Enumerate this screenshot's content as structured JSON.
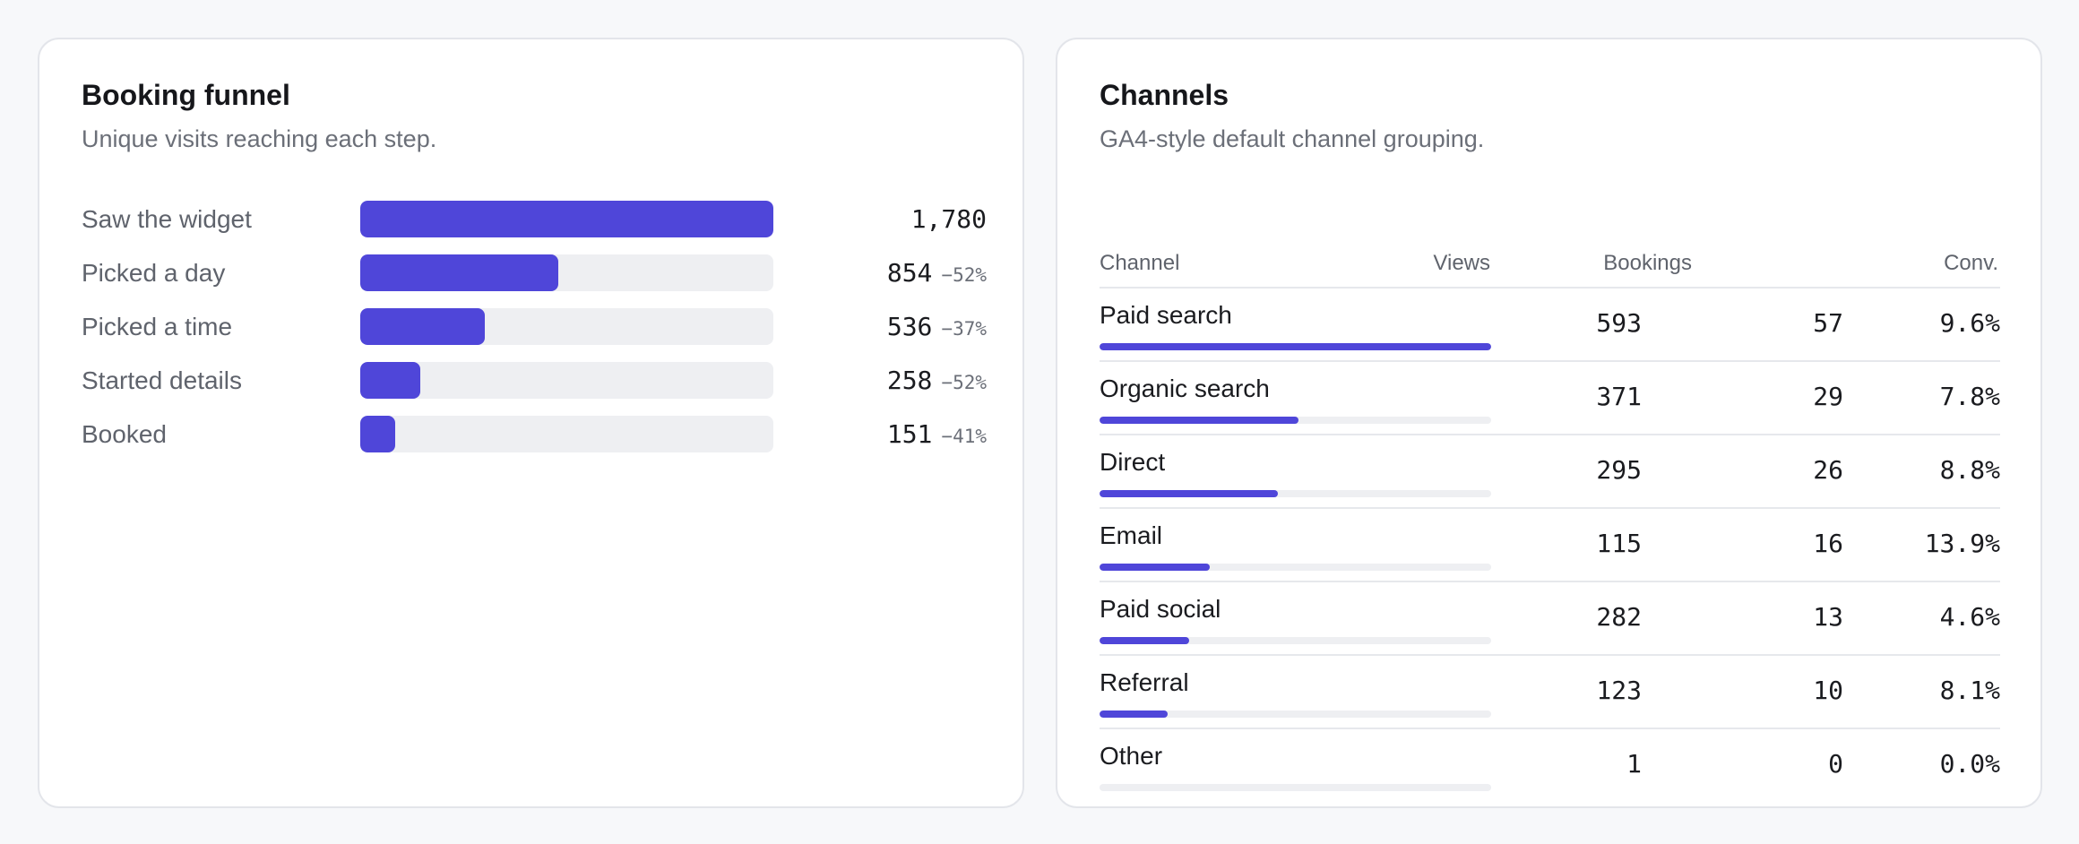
{
  "funnel": {
    "title": "Booking funnel",
    "subtitle": "Unique visits reaching each step.",
    "accent_color": "#4f46d9",
    "track_color": "#eeeff2",
    "steps": [
      {
        "label": "Saw the widget",
        "value": "1,780",
        "drop": "",
        "share": 1.0
      },
      {
        "label": "Picked a day",
        "value": "854",
        "drop": "−52%",
        "share": 0.48
      },
      {
        "label": "Picked a time",
        "value": "536",
        "drop": "−37%",
        "share": 0.301
      },
      {
        "label": "Started details",
        "value": "258",
        "drop": "−52%",
        "share": 0.145
      },
      {
        "label": "Booked",
        "value": "151",
        "drop": "−41%",
        "share": 0.085
      }
    ]
  },
  "channels": {
    "title": "Channels",
    "subtitle": "GA4-style default channel grouping.",
    "columns": {
      "channel": "Channel",
      "views": "Views",
      "bookings": "Bookings",
      "conv": "Conv."
    },
    "rows": [
      {
        "channel": "Paid search",
        "views": "593",
        "bookings": "57",
        "conv": "9.6%",
        "share": 1.0
      },
      {
        "channel": "Organic search",
        "views": "371",
        "bookings": "29",
        "conv": "7.8%",
        "share": 0.509
      },
      {
        "channel": "Direct",
        "views": "295",
        "bookings": "26",
        "conv": "8.8%",
        "share": 0.456
      },
      {
        "channel": "Email",
        "views": "115",
        "bookings": "16",
        "conv": "13.9%",
        "share": 0.281
      },
      {
        "channel": "Paid social",
        "views": "282",
        "bookings": "13",
        "conv": "4.6%",
        "share": 0.228
      },
      {
        "channel": "Referral",
        "views": "123",
        "bookings": "10",
        "conv": "8.1%",
        "share": 0.175
      },
      {
        "channel": "Other",
        "views": "1",
        "bookings": "0",
        "conv": "0.0%",
        "share": 0.0
      }
    ]
  }
}
